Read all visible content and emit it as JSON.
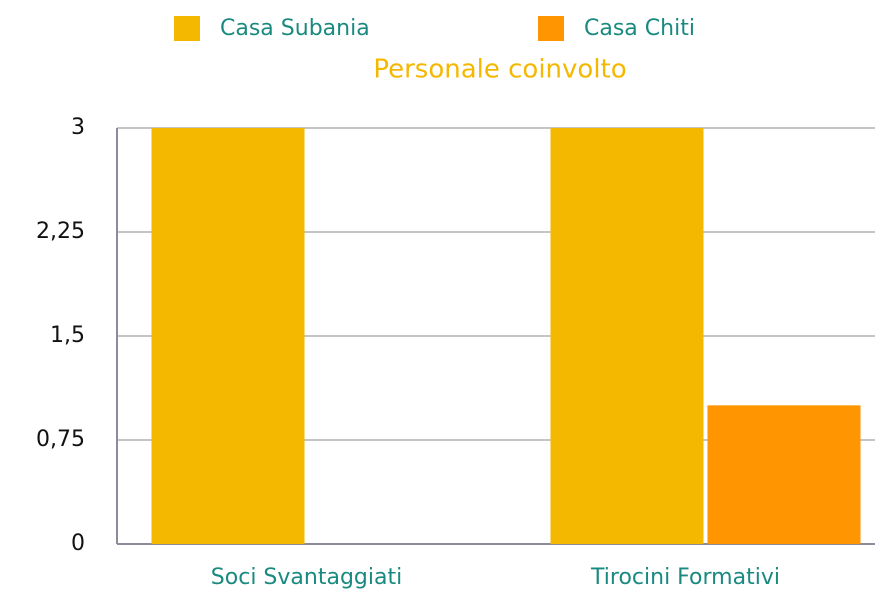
{
  "chart_data": {
    "type": "bar",
    "title": "Personale coinvolto",
    "categories": [
      "Soci Svantaggiati",
      "Tirocini Formativi"
    ],
    "series": [
      {
        "name": "Casa Subania",
        "color": "#f5b800",
        "values": [
          3,
          3
        ]
      },
      {
        "name": "Casa Chiti",
        "color": "#ff9500",
        "values": [
          0,
          1
        ]
      }
    ],
    "ylim": [
      0,
      3
    ],
    "yticks": [
      0,
      {
        "value": 0.75,
        "label": "0,75"
      },
      {
        "value": 1.5,
        "label": "1,5"
      },
      {
        "value": 2.25,
        "label": "2,25"
      },
      3
    ],
    "grid": true
  }
}
